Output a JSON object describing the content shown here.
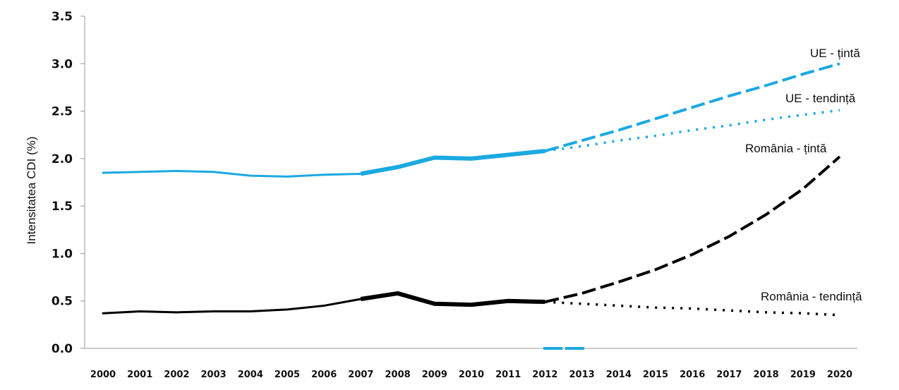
{
  "chart_data": {
    "type": "line",
    "title": "",
    "xlabel": "",
    "ylabel": "Intensitatea CDI (%)",
    "ylim": [
      0,
      3.5
    ],
    "yticks": [
      "0.0",
      "0.5",
      "1.0",
      "1.5",
      "2.0",
      "2.5",
      "3.0",
      "3.5"
    ],
    "x": [
      "2000",
      "2001",
      "2002",
      "2003",
      "2004",
      "2005",
      "2006",
      "2007",
      "2008",
      "2009",
      "2010",
      "2011",
      "2012",
      "2013",
      "2014",
      "2015",
      "2016",
      "2017",
      "2018",
      "2019",
      "2020"
    ],
    "grid": false,
    "colors": {
      "eu": "#1ba9e1",
      "romania": "#000000"
    },
    "series": [
      {
        "key": "eu_actual",
        "style": "solid",
        "color": "#1ba9e1",
        "points": [
          [
            "2000",
            1.85
          ],
          [
            "2001",
            1.86
          ],
          [
            "2002",
            1.87
          ],
          [
            "2003",
            1.86
          ],
          [
            "2004",
            1.82
          ],
          [
            "2005",
            1.81
          ],
          [
            "2006",
            1.83
          ],
          [
            "2007",
            1.84
          ],
          [
            "2008",
            1.91
          ],
          [
            "2009",
            2.01
          ],
          [
            "2010",
            2.0
          ],
          [
            "2011",
            2.04
          ],
          [
            "2012",
            2.08
          ]
        ]
      },
      {
        "key": "eu_target",
        "name": "UE - țintă",
        "style": "dashed",
        "color": "#1ba9e1",
        "points": [
          [
            "2012",
            2.08
          ],
          [
            "2013",
            2.19
          ],
          [
            "2014",
            2.3
          ],
          [
            "2015",
            2.42
          ],
          [
            "2016",
            2.54
          ],
          [
            "2017",
            2.66
          ],
          [
            "2018",
            2.77
          ],
          [
            "2019",
            2.89
          ],
          [
            "2020",
            3.0
          ]
        ]
      },
      {
        "key": "eu_trend",
        "name": "UE - tendință",
        "style": "dotted",
        "color": "#1ba9e1",
        "points": [
          [
            "2012",
            2.08
          ],
          [
            "2013",
            2.13
          ],
          [
            "2014",
            2.19
          ],
          [
            "2015",
            2.24
          ],
          [
            "2016",
            2.3
          ],
          [
            "2017",
            2.35
          ],
          [
            "2018",
            2.41
          ],
          [
            "2019",
            2.46
          ],
          [
            "2020",
            2.51
          ]
        ]
      },
      {
        "key": "ro_actual",
        "style": "solid",
        "color": "#000000",
        "points": [
          [
            "2000",
            0.37
          ],
          [
            "2001",
            0.39
          ],
          [
            "2002",
            0.38
          ],
          [
            "2003",
            0.39
          ],
          [
            "2004",
            0.39
          ],
          [
            "2005",
            0.41
          ],
          [
            "2006",
            0.45
          ],
          [
            "2007",
            0.52
          ],
          [
            "2008",
            0.58
          ],
          [
            "2009",
            0.47
          ],
          [
            "2010",
            0.46
          ],
          [
            "2011",
            0.5
          ],
          [
            "2012",
            0.49
          ]
        ]
      },
      {
        "key": "ro_target",
        "name": "România - țintă",
        "style": "dashed",
        "color": "#000000",
        "points": [
          [
            "2012",
            0.49
          ],
          [
            "2013",
            0.58
          ],
          [
            "2014",
            0.7
          ],
          [
            "2015",
            0.83
          ],
          [
            "2016",
            0.99
          ],
          [
            "2017",
            1.18
          ],
          [
            "2018",
            1.41
          ],
          [
            "2019",
            1.68
          ],
          [
            "2020",
            2.02
          ]
        ]
      },
      {
        "key": "ro_trend",
        "name": "România - tendință",
        "style": "dotted",
        "color": "#000000",
        "points": [
          [
            "2012",
            0.49
          ],
          [
            "2013",
            0.47
          ],
          [
            "2014",
            0.45
          ],
          [
            "2015",
            0.43
          ],
          [
            "2016",
            0.42
          ],
          [
            "2017",
            0.4
          ],
          [
            "2018",
            0.38
          ],
          [
            "2019",
            0.37
          ],
          [
            "2020",
            0.35
          ]
        ]
      }
    ],
    "labels": {
      "eu_target": "UE - țintă",
      "eu_trend": "UE - tendință",
      "ro_target": "România - țintă",
      "ro_trend": "România - tendință"
    }
  }
}
